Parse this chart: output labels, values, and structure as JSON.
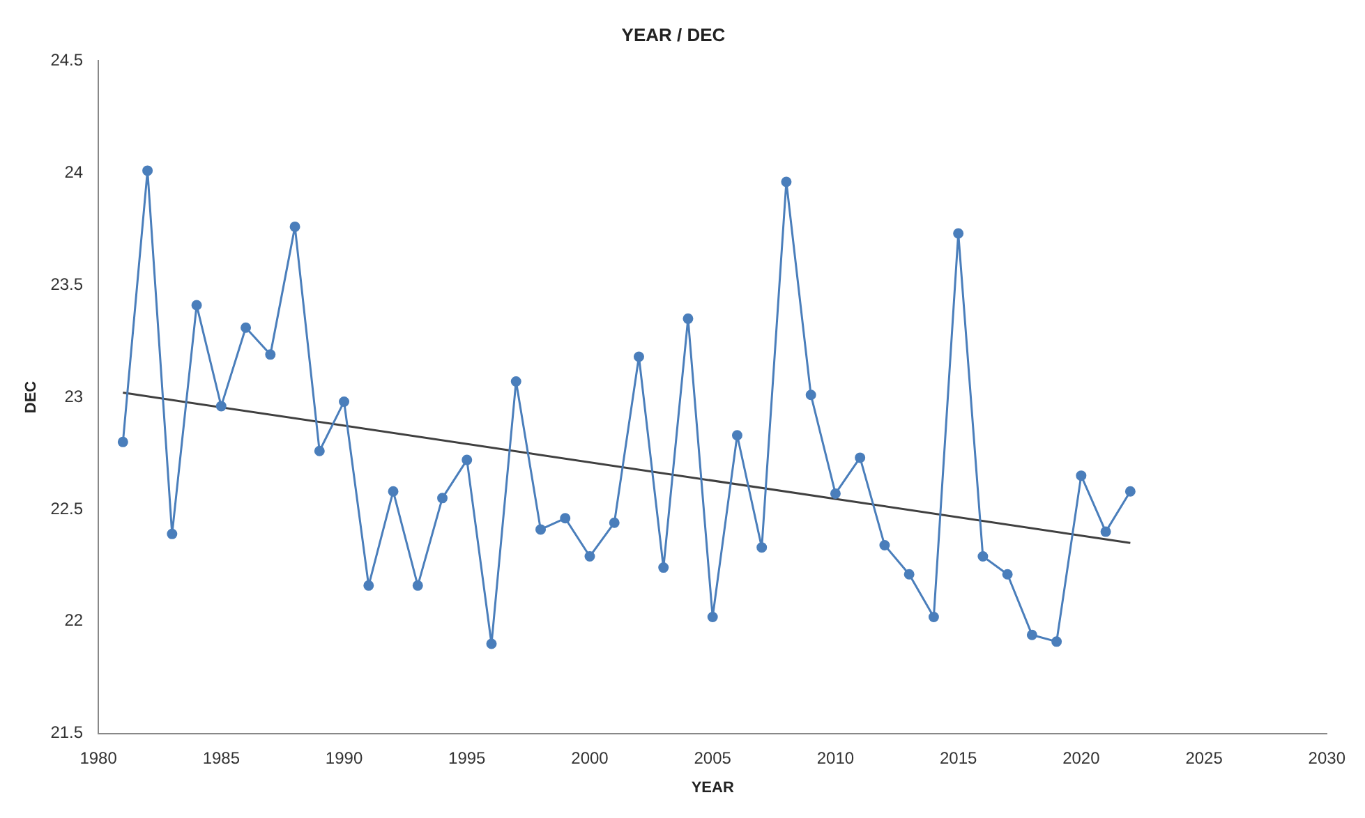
{
  "chart_data": {
    "type": "line",
    "title": "YEAR / DEC",
    "xlabel": "YEAR",
    "ylabel": "DEC",
    "xlim": [
      1980,
      2030
    ],
    "xticks": [
      1980,
      1985,
      1990,
      1995,
      2000,
      2005,
      2010,
      2015,
      2020,
      2025,
      2030
    ],
    "ylim": [
      21.5,
      24.5
    ],
    "yticks": [
      21.5,
      22,
      22.5,
      23,
      23.5,
      24,
      24.5
    ],
    "grid": false,
    "legend": false,
    "marker": "circle",
    "line_style": "solid",
    "series": [
      {
        "color": "#4a7ebb",
        "x": [
          1981,
          1982,
          1983,
          1984,
          1985,
          1986,
          1987,
          1988,
          1989,
          1990,
          1991,
          1992,
          1993,
          1994,
          1995,
          1996,
          1997,
          1998,
          1999,
          2000,
          2001,
          2002,
          2003,
          2004,
          2005,
          2006,
          2007,
          2008,
          2009,
          2010,
          2011,
          2012,
          2013,
          2014,
          2015,
          2016,
          2017,
          2018,
          2019,
          2020,
          2021,
          2022
        ],
        "values": [
          22.8,
          24.01,
          22.39,
          23.41,
          22.96,
          23.31,
          23.19,
          23.76,
          22.76,
          22.98,
          22.16,
          22.58,
          22.16,
          22.55,
          22.72,
          21.9,
          23.07,
          22.41,
          22.46,
          22.29,
          22.44,
          23.18,
          22.24,
          23.35,
          22.02,
          22.83,
          22.33,
          23.96,
          23.01,
          22.57,
          22.73,
          22.34,
          22.21,
          22.02,
          23.73,
          22.29,
          22.21,
          21.94,
          21.91,
          22.65,
          22.4,
          22.58
        ]
      },
      {
        "type": "line",
        "marker": "none",
        "color": "#404040",
        "x": [
          1981,
          2022
        ],
        "values": [
          23.02,
          22.35
        ]
      }
    ]
  }
}
